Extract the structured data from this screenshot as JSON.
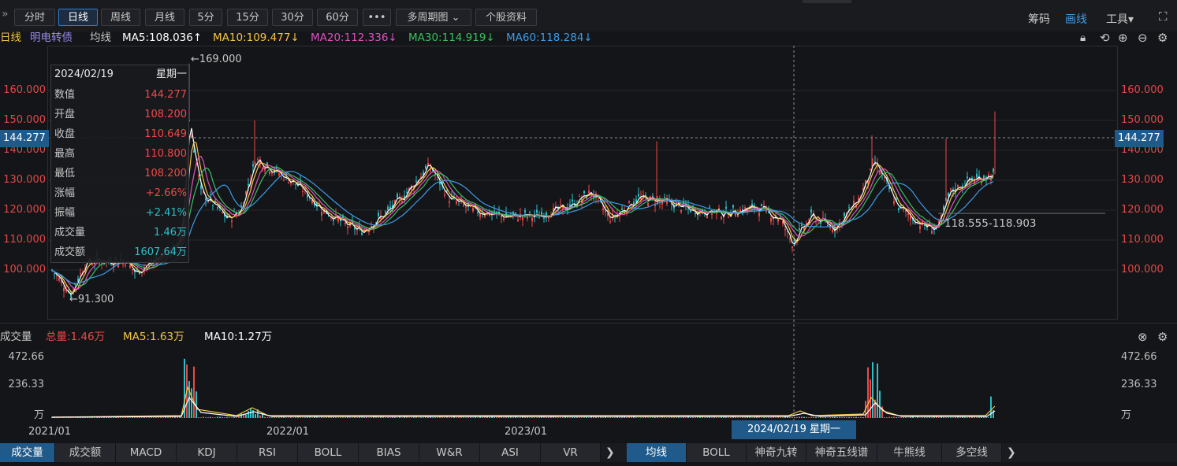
{
  "toolbar": {
    "periods": [
      "分时",
      "日线",
      "周线",
      "月线",
      "5分",
      "15分",
      "30分",
      "60分"
    ],
    "active_period": "日线",
    "more_label": "•••",
    "multi_label": "多周期图 ⌄",
    "info_label": "个股资料",
    "right": {
      "chips": "筹码",
      "draw": "画线",
      "tools": "工具▾"
    }
  },
  "info": {
    "period": "日线",
    "name": "明电转债",
    "ma_label": "均线",
    "ma5": "MA5:108.036↑",
    "ma10": "MA10:109.477↓",
    "ma20": "MA20:112.336↓",
    "ma30": "MA30:114.919↓",
    "ma60": "MA60:118.284↓"
  },
  "price_axis": {
    "labels": [
      "160.000",
      "150.000",
      "140.000",
      "130.000",
      "120.000",
      "110.000",
      "100.000"
    ]
  },
  "current_price": "144.277",
  "marks": {
    "high": "←169.000",
    "low": "←91.300",
    "range": "118.555-118.903"
  },
  "tooltip": {
    "date": "2024/02/19",
    "weekday": "星期一",
    "rows": [
      {
        "k": "数值",
        "v": "144.277",
        "c": "#f04848"
      },
      {
        "k": "开盘",
        "v": "108.200",
        "c": "#f04848"
      },
      {
        "k": "收盘",
        "v": "110.649",
        "c": "#f04848"
      },
      {
        "k": "最高",
        "v": "110.800",
        "c": "#f04848"
      },
      {
        "k": "最低",
        "v": "108.200",
        "c": "#f04848"
      },
      {
        "k": "涨幅",
        "v": "+2.66%",
        "c": "#f04848"
      },
      {
        "k": "振幅",
        "v": "+2.41%",
        "c": "#2ac0c8"
      },
      {
        "k": "成交量",
        "v": "1.46万",
        "c": "#2ac0c8"
      },
      {
        "k": "成交额",
        "v": "1607.64万",
        "c": "#2ac0c8"
      }
    ]
  },
  "volume": {
    "title": "成交量",
    "total": "总量:1.46万",
    "ma5": "MA5:1.63万",
    "ma10": "MA10:1.27万",
    "axis": [
      "472.66",
      "236.33",
      "万"
    ]
  },
  "x_axis": [
    "2021/01",
    "2022/01",
    "2023/01"
  ],
  "cursor_date": "2024/02/19 星期一",
  "tabs_left": [
    "成交量",
    "成交额",
    "MACD",
    "KDJ",
    "RSI",
    "BOLL",
    "BIAS",
    "W&R",
    "ASI",
    "VR"
  ],
  "tabs_right": [
    "均线",
    "BOLL",
    "神奇九转",
    "神奇五线谱",
    "牛熊线",
    "多空线"
  ],
  "colors": {
    "up": "#f04848",
    "down": "#2ac0c8",
    "ma5": "#ffffff",
    "ma10": "#f5c542",
    "ma20": "#e050c0",
    "ma30": "#38c060",
    "ma60": "#3c9be8",
    "accent": "#1f5a8a"
  }
}
